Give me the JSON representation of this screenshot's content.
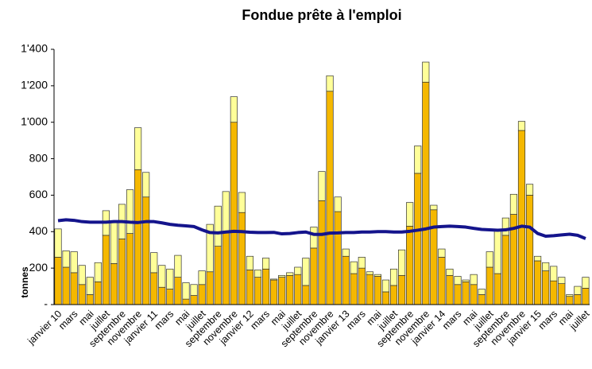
{
  "chart_data": {
    "type": "bar",
    "title": "Fondue prête à l'emploi",
    "y_label": "tonnes",
    "categories": [
      "janvier 10",
      null,
      "mars",
      null,
      "mai",
      null,
      "juillet",
      null,
      "septembre",
      null,
      "novembre",
      null,
      "janvier 11",
      null,
      "mars",
      null,
      "mai",
      null,
      "juillet",
      null,
      "septembre",
      null,
      "novembre",
      null,
      "janvier 12",
      null,
      "mars",
      null,
      "mai",
      null,
      "juillet",
      null,
      "septembre",
      null,
      "novembre",
      null,
      "janvier 13",
      null,
      "mars",
      null,
      "mai",
      null,
      "juillet",
      null,
      "septembre",
      null,
      "novembre",
      null,
      "janvier 14",
      null,
      "mars",
      null,
      "mai",
      null,
      "juillet",
      null,
      "septembre",
      null,
      "novembre",
      null,
      "janvier 15",
      null,
      "mars",
      null,
      "mai",
      null,
      "juillet"
    ],
    "series": [
      {
        "color": "#f5b800",
        "values": [
          260,
          205,
          175,
          110,
          55,
          125,
          380,
          225,
          360,
          390,
          740,
          590,
          175,
          95,
          85,
          150,
          30,
          50,
          110,
          180,
          320,
          400,
          1000,
          505,
          190,
          150,
          195,
          135,
          150,
          160,
          165,
          105,
          310,
          570,
          1170,
          510,
          265,
          170,
          200,
          165,
          155,
          70,
          105,
          160,
          430,
          720,
          1220,
          520,
          260,
          160,
          110,
          125,
          110,
          55,
          205,
          170,
          380,
          495,
          955,
          600,
          240,
          185,
          130,
          115,
          45,
          55,
          90
        ]
      },
      {
        "color": "#ffff99",
        "values": [
          155,
          90,
          115,
          105,
          95,
          105,
          135,
          235,
          190,
          240,
          230,
          135,
          110,
          120,
          110,
          120,
          90,
          60,
          75,
          260,
          220,
          220,
          140,
          110,
          75,
          40,
          60,
          5,
          10,
          15,
          40,
          150,
          115,
          160,
          85,
          80,
          40,
          65,
          60,
          15,
          10,
          65,
          90,
          140,
          130,
          150,
          110,
          25,
          45,
          35,
          45,
          10,
          55,
          30,
          85,
          240,
          95,
          110,
          50,
          60,
          25,
          45,
          80,
          35,
          10,
          45,
          60
        ]
      },
      {
        "type": "line",
        "color": "#14148c",
        "values": [
          460,
          465,
          462,
          455,
          452,
          452,
          452,
          455,
          455,
          452,
          450,
          455,
          455,
          448,
          440,
          435,
          432,
          428,
          410,
          395,
          393,
          398,
          402,
          400,
          397,
          395,
          395,
          396,
          388,
          390,
          395,
          398,
          385,
          385,
          392,
          393,
          395,
          395,
          398,
          398,
          400,
          400,
          398,
          398,
          402,
          408,
          415,
          425,
          428,
          430,
          428,
          425,
          418,
          412,
          410,
          408,
          410,
          418,
          430,
          425,
          390,
          375,
          378,
          382,
          386,
          380,
          362
        ]
      }
    ],
    "ylim": [
      0,
      1400
    ],
    "yticks": [
      {
        "value": 0,
        "label": "-"
      },
      200,
      400,
      600,
      800,
      {
        "value": 1000,
        "label": "1'000"
      },
      {
        "value": 1200,
        "label": "1'200"
      },
      {
        "value": 1400,
        "label": "1'400"
      }
    ],
    "grid": false
  }
}
